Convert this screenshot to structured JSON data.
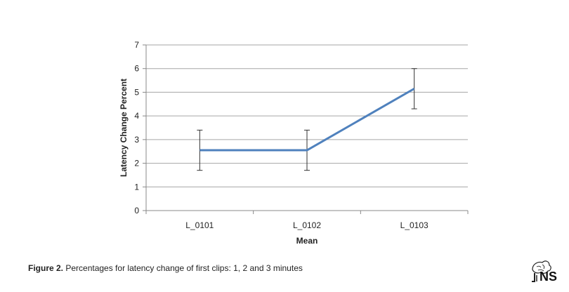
{
  "chart_data": {
    "type": "line",
    "categories": [
      "L_0101",
      "L_0102",
      "L_0103"
    ],
    "series": [
      {
        "values": [
          2.55,
          2.55,
          5.15
        ],
        "error_low": [
          1.7,
          1.7,
          4.3
        ],
        "error_high": [
          3.4,
          3.4,
          6.0
        ],
        "color": "#4f81bd"
      }
    ],
    "xlabel": "Mean",
    "ylabel": "Latency Change Percent",
    "ylim": [
      0,
      7
    ],
    "yticks": [
      0,
      1,
      2,
      3,
      4,
      5,
      6,
      7
    ],
    "grid": true,
    "legend": "none"
  },
  "caption": {
    "label": "Figure 2.",
    "text": " Percentages for latency change of first clips: 1, 2 and 3 minutes"
  },
  "logo": {
    "text": "NS"
  }
}
